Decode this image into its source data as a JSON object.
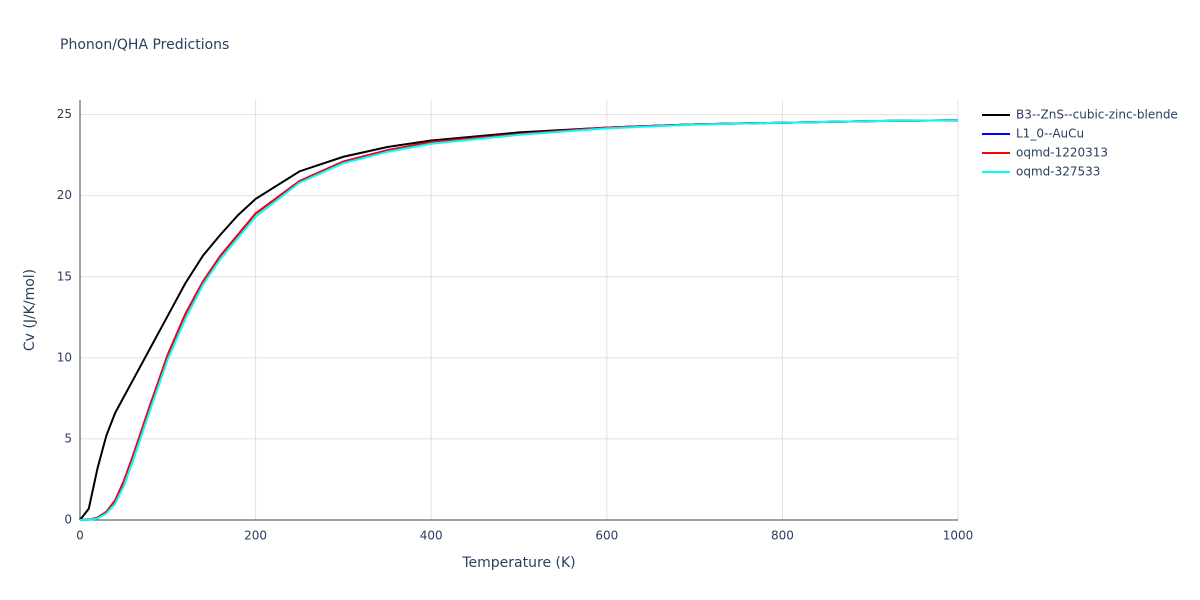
{
  "chart_data": {
    "type": "line",
    "title": "Phonon/QHA Predictions",
    "x_label": "Temperature (K)",
    "y_label": "Cv (J/K/mol)",
    "x": [
      0,
      10,
      20,
      30,
      40,
      50,
      60,
      80,
      100,
      120,
      140,
      160,
      180,
      200,
      250,
      300,
      350,
      400,
      500,
      600,
      700,
      800,
      900,
      1000
    ],
    "series": [
      {
        "name": "B3--ZnS--cubic-zinc-blende",
        "color": "#000000",
        "values": [
          0,
          0.7,
          3.2,
          5.2,
          6.6,
          7.6,
          8.6,
          10.6,
          12.6,
          14.6,
          16.3,
          17.6,
          18.8,
          19.8,
          21.5,
          22.4,
          23.0,
          23.4,
          23.9,
          24.2,
          24.4,
          24.5,
          24.6,
          24.65
        ]
      },
      {
        "name": "L1_0--AuCu",
        "color": "#0000ff",
        "values": [
          0,
          0.02,
          0.15,
          0.5,
          1.2,
          2.4,
          3.9,
          7.1,
          10.2,
          12.7,
          14.7,
          16.3,
          17.6,
          18.9,
          20.9,
          22.1,
          22.8,
          23.3,
          23.8,
          24.2,
          24.4,
          24.5,
          24.6,
          24.65
        ]
      },
      {
        "name": "oqmd-1220313",
        "color": "#ff0000",
        "values": [
          0,
          0.02,
          0.15,
          0.5,
          1.2,
          2.4,
          3.9,
          7.1,
          10.2,
          12.7,
          14.7,
          16.3,
          17.6,
          18.9,
          20.9,
          22.1,
          22.8,
          23.3,
          23.8,
          24.2,
          24.4,
          24.5,
          24.6,
          24.65
        ]
      },
      {
        "name": "oqmd-327533",
        "color": "#00ffff",
        "values": [
          0,
          0.01,
          0.1,
          0.4,
          1.0,
          2.1,
          3.6,
          6.8,
          9.9,
          12.4,
          14.5,
          16.1,
          17.4,
          18.7,
          20.8,
          22.0,
          22.7,
          23.2,
          23.75,
          24.15,
          24.38,
          24.5,
          24.6,
          24.65
        ]
      }
    ],
    "xlim": [
      0,
      1000
    ],
    "xticks": [
      0,
      200,
      400,
      600,
      800,
      1000
    ],
    "ylim": [
      0,
      25.9
    ],
    "yticks": [
      0,
      5,
      10,
      15,
      20,
      25
    ],
    "grid": true,
    "legend": "right"
  }
}
